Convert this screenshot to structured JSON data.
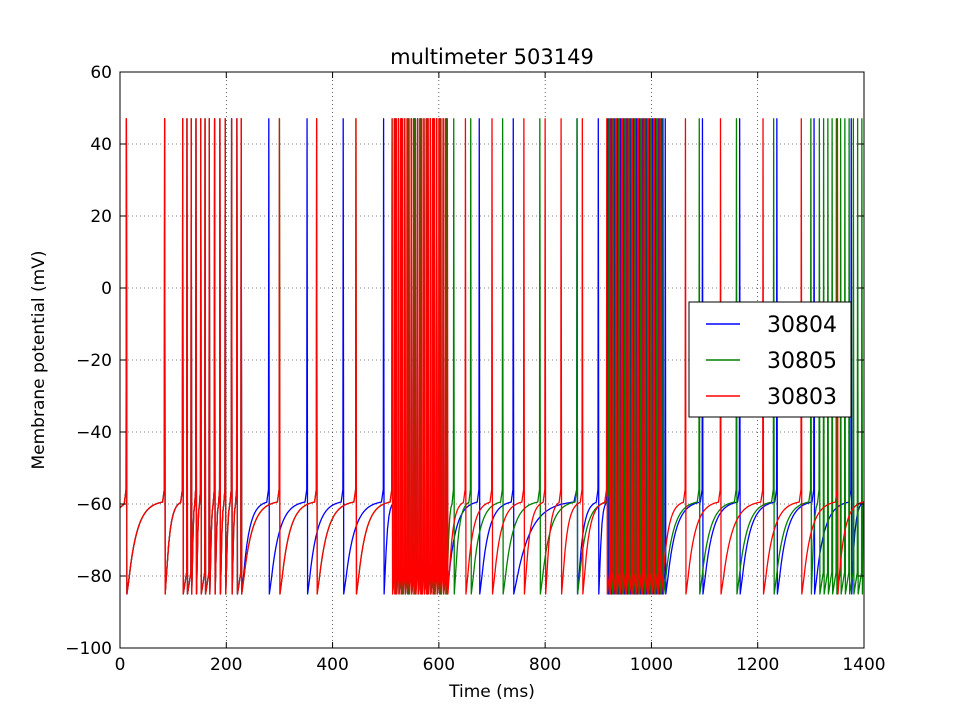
{
  "chart_data": {
    "type": "line",
    "title": "multimeter 503149",
    "xlabel": "Time (ms)",
    "ylabel": "Membrane potential (mV)",
    "xlim": [
      0,
      1400
    ],
    "ylim": [
      -100,
      60
    ],
    "xticks": [
      0,
      200,
      400,
      600,
      800,
      1000,
      1200,
      1400
    ],
    "yticks": [
      -100,
      -80,
      -60,
      -40,
      -20,
      0,
      20,
      40,
      60
    ],
    "xtick_labels": [
      "0",
      "200",
      "400",
      "600",
      "800",
      "1000",
      "1200",
      "1400"
    ],
    "ytick_labels": [
      "−100",
      "−80",
      "−60",
      "−40",
      "−20",
      "0",
      "20",
      "40",
      "60"
    ],
    "grid": true,
    "legend_position": "center-right",
    "spike_peak_mv": 47,
    "reset_mv": -85,
    "series": [
      {
        "name": "30804",
        "color": "#0000ff",
        "spike_times_ms": [
          12,
          84,
          118,
          126,
          134,
          143,
          152,
          160,
          168,
          178,
          188,
          198,
          210,
          220,
          228,
          280,
          352,
          420,
          496,
          518,
          524,
          530,
          536,
          542,
          548,
          554,
          560,
          566,
          572,
          578,
          584,
          590,
          596,
          602,
          608,
          614,
          676,
          740,
          860,
          900,
          918,
          924,
          930,
          936,
          942,
          948,
          954,
          960,
          966,
          972,
          978,
          984,
          990,
          996,
          1002,
          1008,
          1014,
          1020,
          1026,
          1096,
          1166,
          1236,
          1306,
          1376
        ]
      },
      {
        "name": "30805",
        "color": "#008000",
        "spike_times_ms": [
          12,
          84,
          118,
          126,
          134,
          143,
          152,
          160,
          168,
          178,
          188,
          198,
          210,
          220,
          228,
          300,
          370,
          444,
          512,
          518,
          524,
          530,
          536,
          542,
          548,
          554,
          560,
          566,
          572,
          578,
          584,
          590,
          596,
          602,
          608,
          614,
          628,
          660,
          720,
          790,
          860,
          920,
          926,
          932,
          938,
          944,
          950,
          956,
          962,
          968,
          974,
          980,
          986,
          992,
          998,
          1004,
          1010,
          1016,
          1022,
          1090,
          1160,
          1230,
          1300,
          1316,
          1324,
          1332,
          1340,
          1348,
          1356,
          1364,
          1372,
          1380,
          1388,
          1396
        ]
      },
      {
        "name": "30803",
        "color": "#ff0000",
        "spike_times_ms": [
          12,
          84,
          118,
          126,
          134,
          143,
          152,
          160,
          168,
          178,
          188,
          198,
          210,
          220,
          228,
          300,
          370,
          444,
          512,
          516,
          520,
          524,
          528,
          532,
          536,
          540,
          544,
          548,
          552,
          556,
          560,
          564,
          568,
          572,
          576,
          580,
          584,
          588,
          592,
          596,
          600,
          604,
          608,
          612,
          616,
          650,
          700,
          760,
          800,
          830,
          870,
          916,
          922,
          928,
          934,
          940,
          946,
          952,
          958,
          964,
          970,
          976,
          982,
          988,
          994,
          1000,
          1006,
          1012,
          1018,
          1064,
          1130,
          1210,
          1282,
          1350
        ]
      }
    ]
  }
}
